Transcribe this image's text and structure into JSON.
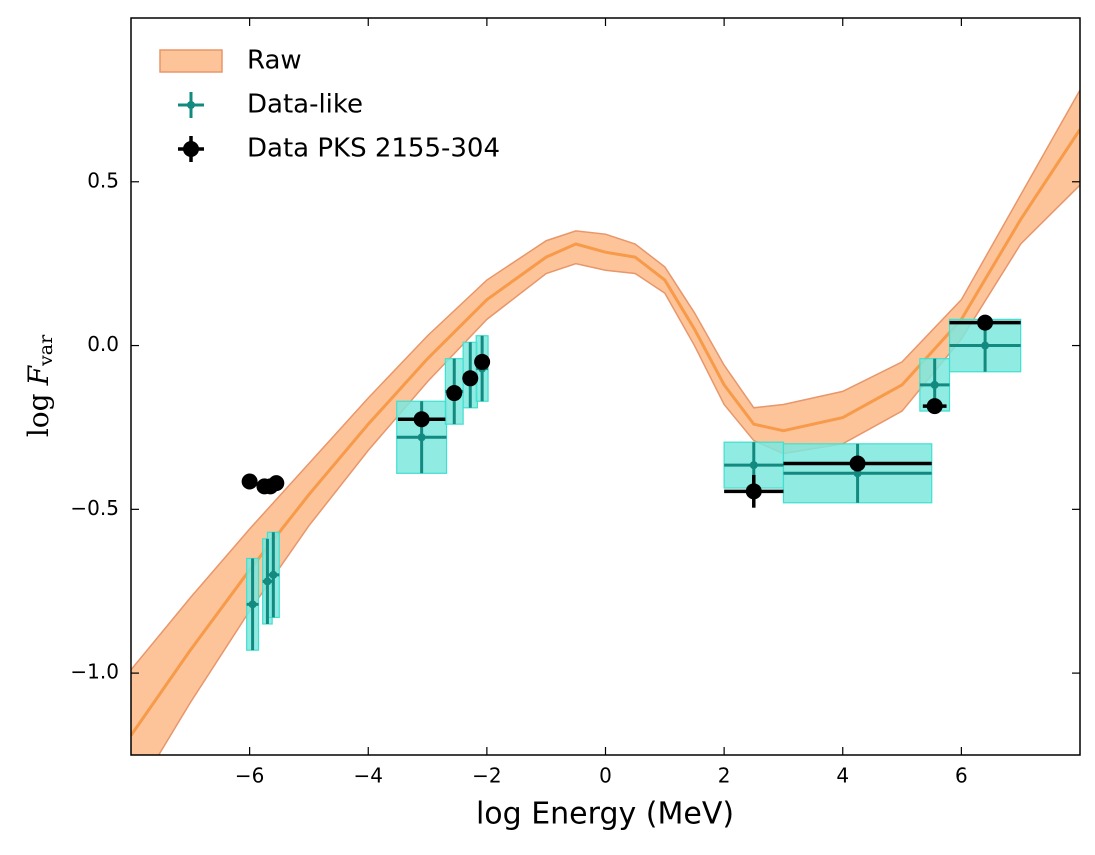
{
  "chart_data": {
    "type": "errorbar",
    "xlabel": "log Energy (MeV)",
    "ylabel": {
      "base": "log",
      "symbol": "F",
      "subscript": "var"
    },
    "xlim": [
      -8,
      8
    ],
    "ylim": [
      -1.25,
      1.0
    ],
    "xticks": [
      {
        "value": -6,
        "label": "−6"
      },
      {
        "value": -4,
        "label": "−4"
      },
      {
        "value": -2,
        "label": "−2"
      },
      0,
      2,
      4,
      6
    ],
    "yticks": [
      {
        "value": 0.5,
        "label": "0.5"
      },
      {
        "value": 0,
        "label": "0.0"
      },
      {
        "value": -0.5,
        "label": "−0.5"
      },
      {
        "value": -1.0,
        "label": "−1.0"
      }
    ],
    "legend": "upper left",
    "series": [
      {
        "name": "Raw",
        "kind": "band",
        "color": "#f79a4a",
        "fill": "#fdc49a",
        "edge": "#e8966a",
        "x": [
          -8,
          -7,
          -6,
          -5,
          -4,
          -3,
          -2,
          -1,
          -0.5,
          0,
          0.5,
          1,
          1.5,
          2,
          2.5,
          3,
          4,
          5,
          6,
          7,
          8
        ],
        "values": [
          -1.19,
          -0.93,
          -0.685,
          -0.455,
          -0.24,
          -0.04,
          0.14,
          0.27,
          0.31,
          0.285,
          0.27,
          0.2,
          0.05,
          -0.12,
          -0.24,
          -0.26,
          -0.22,
          -0.12,
          0.08,
          0.385,
          0.66
        ],
        "upper": [
          -0.99,
          -0.77,
          -0.56,
          -0.36,
          -0.16,
          0.03,
          0.2,
          0.32,
          0.35,
          0.34,
          0.31,
          0.24,
          0.1,
          -0.06,
          -0.19,
          -0.18,
          -0.14,
          -0.05,
          0.14,
          0.46,
          0.78
        ],
        "lower": [
          -1.39,
          -1.09,
          -0.81,
          -0.55,
          -0.32,
          -0.11,
          0.08,
          0.22,
          0.25,
          0.23,
          0.22,
          0.16,
          0.0,
          -0.18,
          -0.29,
          -0.33,
          -0.3,
          -0.2,
          0.02,
          0.31,
          0.49
        ]
      },
      {
        "name": "Data-like",
        "kind": "boxes",
        "color": "#138a7f",
        "fill": "#7de8de",
        "edge": "#40e0d0",
        "x": [
          -5.95,
          -5.7,
          -5.6,
          -3.1,
          -2.55,
          -2.28,
          -2.08,
          2.5,
          4.25,
          5.55,
          6.4
        ],
        "values": [
          -0.79,
          -0.72,
          -0.7,
          -0.28,
          -0.14,
          -0.09,
          -0.07,
          -0.365,
          -0.39,
          -0.12,
          0.0
        ],
        "xerr": [
          0.1,
          0.08,
          0.1,
          0.42,
          0.15,
          0.12,
          0.1,
          0.5,
          1.25,
          0.25,
          0.6
        ],
        "yerr": [
          0.14,
          0.13,
          0.13,
          0.11,
          0.1,
          0.1,
          0.1,
          0.07,
          0.09,
          0.08,
          0.08
        ]
      },
      {
        "name": "Data PKS 2155-304",
        "kind": "points",
        "color": "#000000",
        "x": [
          -6.0,
          -5.75,
          -5.65,
          -5.55,
          -3.1,
          -2.55,
          -2.28,
          -2.08,
          2.5,
          4.25,
          5.55,
          6.4
        ],
        "values": [
          -0.415,
          -0.43,
          -0.43,
          -0.42,
          -0.225,
          -0.145,
          -0.1,
          -0.05,
          -0.445,
          -0.36,
          -0.185,
          0.07
        ],
        "xerr": [
          null,
          null,
          null,
          null,
          0.4,
          null,
          null,
          null,
          0.5,
          1.25,
          0.2,
          0.6
        ],
        "yerr": [
          null,
          null,
          null,
          null,
          null,
          null,
          null,
          null,
          0.05,
          null,
          null,
          null
        ]
      }
    ]
  }
}
